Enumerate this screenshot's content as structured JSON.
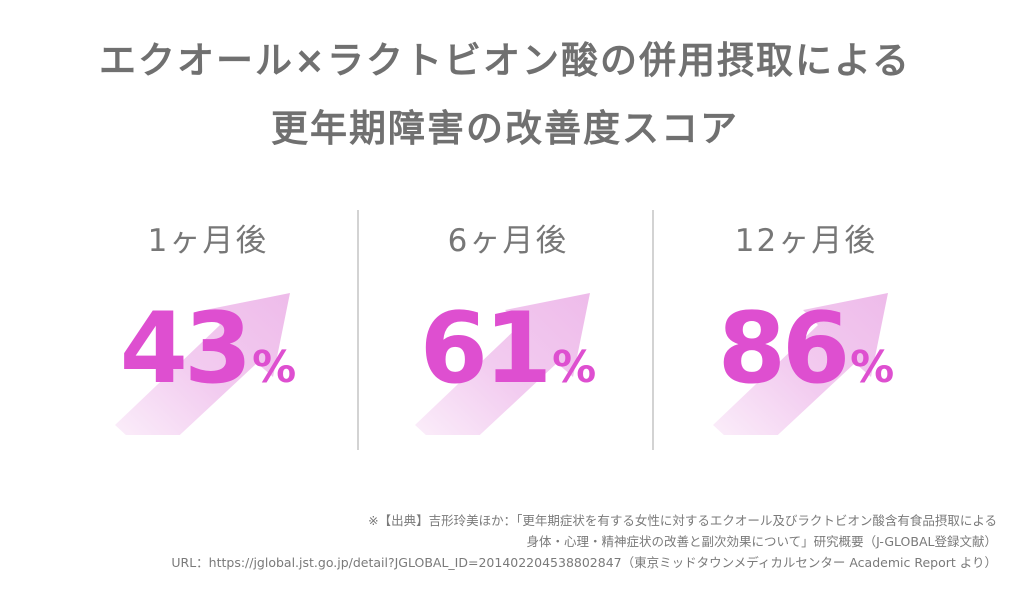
{
  "title": {
    "line1": "エクオール×ラクトビオン酸の併用摂取による",
    "line2": "更年期障害の改善度スコア"
  },
  "stats": [
    {
      "period": "1ヶ月後",
      "value": "43",
      "unit": "%"
    },
    {
      "period": "6ヶ月後",
      "value": "61",
      "unit": "%"
    },
    {
      "period": "12ヶ月後",
      "value": "86",
      "unit": "%"
    }
  ],
  "source": {
    "line1": "※【出典】吉形玲美ほか：「更年期症状を有する女性に対するエクオール及びラクトビオン酸含有食品摂取による",
    "line2": "身体・心理・精神症状の改善と副次効果について」研究概要（J-GLOBAL登録文献）",
    "line3": "URL：https://jglobal.jst.go.jp/detail?JGLOBAL_ID=201402204538802847（東京ミッドタウンメディカルセンター Academic Report より）"
  },
  "colors": {
    "accent": "#de4fd0",
    "arrow": "#f1c6ee",
    "title": "#707070",
    "divider": "#d3d3d3"
  }
}
